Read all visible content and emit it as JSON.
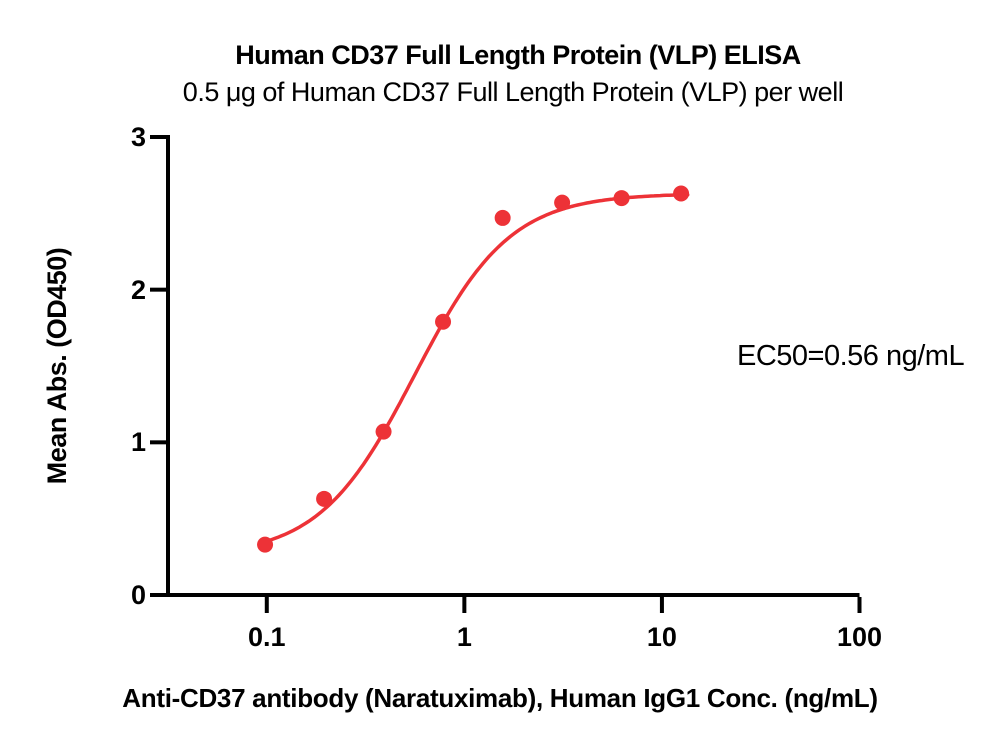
{
  "chart_data": {
    "type": "scatter",
    "title": "Human CD37 Full Length Protein (VLP) ELISA",
    "subtitle": "0.5 μg of Human CD37 Full Length Protein (VLP) per well",
    "xlabel": "Anti-CD37 antibody (Naratuximab), Human IgG1 Conc. (ng/mL)",
    "ylabel": "Mean Abs. (OD450)",
    "annotation": "EC50=0.56 ng/mL",
    "x_scale": "log10",
    "x_ticks": [
      0.1,
      1,
      10,
      100
    ],
    "x_tick_labels": [
      "0.1",
      "1",
      "10",
      "100"
    ],
    "y_ticks": [
      0,
      1,
      2,
      3
    ],
    "y_tick_labels": [
      "0",
      "1",
      "2",
      "3"
    ],
    "xlim_log10": [
      -1.5,
      2
    ],
    "ylim": [
      0,
      3
    ],
    "grid": false,
    "legend": null,
    "points": [
      {
        "x": 0.098,
        "y": 0.33
      },
      {
        "x": 0.195,
        "y": 0.63
      },
      {
        "x": 0.39,
        "y": 1.07
      },
      {
        "x": 0.78,
        "y": 1.79
      },
      {
        "x": 1.5625,
        "y": 2.47
      },
      {
        "x": 3.125,
        "y": 2.57
      },
      {
        "x": 6.25,
        "y": 2.6
      },
      {
        "x": 12.5,
        "y": 2.63
      }
    ],
    "fit": {
      "model": "4PL",
      "bottom": 0.25,
      "top": 2.63,
      "ec50": 0.56,
      "hill": 1.8,
      "x_range": [
        0.092,
        13.5
      ]
    },
    "colors": {
      "series": "#ED3237",
      "axis": "#000000",
      "text": "#000000"
    }
  }
}
